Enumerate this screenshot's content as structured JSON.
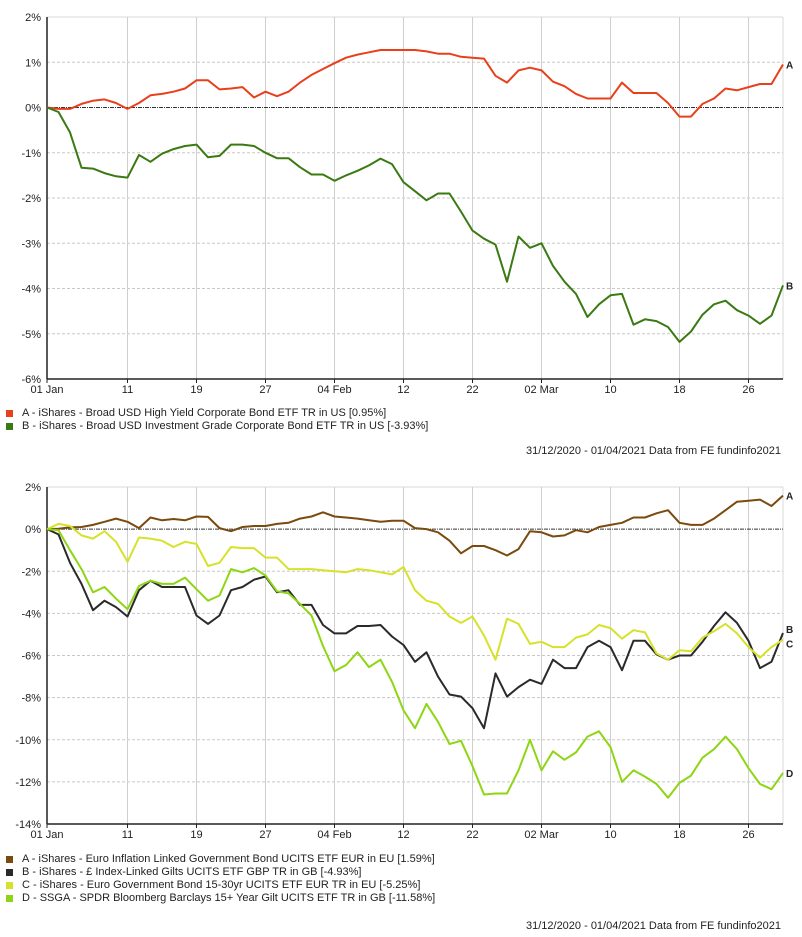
{
  "chart_data": [
    {
      "type": "line",
      "title": "",
      "xlabel": "",
      "ylabel": "",
      "ylim": [
        -6,
        2
      ],
      "yticks": [
        "2%",
        "1%",
        "0%",
        "-1%",
        "-2%",
        "-3%",
        "-4%",
        "-5%",
        "-6%"
      ],
      "ytick_values": [
        2,
        1,
        0,
        -1,
        -2,
        -3,
        -4,
        -5,
        -6
      ],
      "xticks": [
        "01 Jan",
        "11",
        "19",
        "27",
        "04 Feb",
        "12",
        "22",
        "02 Mar",
        "10",
        "18",
        "26"
      ],
      "xtick_positions": [
        0,
        7,
        13,
        19,
        25,
        31,
        37,
        43,
        49,
        55,
        61
      ],
      "x_count": 65,
      "grid": true,
      "zero_line": true,
      "series": [
        {
          "name": "A - iShares - Broad USD High Yield Corporate Bond ETF TR in US [0.95%]",
          "end_label": "A",
          "color": "#e8401c",
          "values": [
            0,
            -0.03,
            -0.03,
            0.08,
            0.15,
            0.18,
            0.1,
            -0.03,
            0.1,
            0.27,
            0.3,
            0.35,
            0.42,
            0.6,
            0.6,
            0.4,
            0.42,
            0.45,
            0.22,
            0.35,
            0.25,
            0.35,
            0.55,
            0.72,
            0.85,
            0.98,
            1.1,
            1.17,
            1.22,
            1.27,
            1.27,
            1.27,
            1.27,
            1.24,
            1.19,
            1.19,
            1.12,
            1.1,
            1.08,
            0.7,
            0.55,
            0.82,
            0.88,
            0.82,
            0.57,
            0.47,
            0.3,
            0.2,
            0.2,
            0.2,
            0.55,
            0.32,
            0.32,
            0.32,
            0.1,
            -0.2,
            -0.2,
            0.08,
            0.2,
            0.42,
            0.38,
            0.45,
            0.52,
            0.52,
            0.95
          ]
        },
        {
          "name": "B - iShares - Broad USD Investment Grade Corporate Bond ETF TR in US [-3.93%]",
          "end_label": "B",
          "color": "#3a7a12",
          "values": [
            0,
            -0.1,
            -0.55,
            -1.33,
            -1.35,
            -1.45,
            -1.52,
            -1.55,
            -1.05,
            -1.2,
            -1.02,
            -0.92,
            -0.85,
            -0.82,
            -1.1,
            -1.07,
            -0.82,
            -0.82,
            -0.85,
            -1.0,
            -1.12,
            -1.12,
            -1.32,
            -1.48,
            -1.48,
            -1.62,
            -1.5,
            -1.4,
            -1.28,
            -1.13,
            -1.25,
            -1.65,
            -1.85,
            -2.05,
            -1.9,
            -1.9,
            -2.3,
            -2.72,
            -2.9,
            -3.03,
            -3.85,
            -2.85,
            -3.1,
            -3.0,
            -3.5,
            -3.85,
            -4.12,
            -4.63,
            -4.35,
            -4.15,
            -4.12,
            -4.8,
            -4.68,
            -4.72,
            -4.85,
            -5.18,
            -4.95,
            -4.58,
            -4.35,
            -4.27,
            -4.48,
            -4.6,
            -4.78,
            -4.6,
            -3.93
          ]
        }
      ]
    },
    {
      "type": "line",
      "title": "",
      "xlabel": "",
      "ylabel": "",
      "ylim": [
        -14,
        2
      ],
      "yticks": [
        "2%",
        "0%",
        "-2%",
        "-4%",
        "-6%",
        "-8%",
        "-10%",
        "-12%",
        "-14%"
      ],
      "ytick_values": [
        2,
        0,
        -2,
        -4,
        -6,
        -8,
        -10,
        -12,
        -14
      ],
      "xticks": [
        "01 Jan",
        "11",
        "19",
        "27",
        "04 Feb",
        "12",
        "22",
        "02 Mar",
        "10",
        "18",
        "26"
      ],
      "xtick_positions": [
        0,
        7,
        13,
        19,
        25,
        31,
        37,
        43,
        49,
        55,
        61
      ],
      "x_count": 65,
      "grid": true,
      "zero_line": true,
      "series": [
        {
          "name": "A - iShares - Euro Inflation Linked Government Bond UCITS ETF EUR in EU [1.59%]",
          "end_label": "A",
          "color": "#7a4a0e",
          "values": [
            0,
            0.02,
            0.08,
            0.1,
            0.2,
            0.35,
            0.5,
            0.35,
            0.05,
            0.55,
            0.42,
            0.48,
            0.42,
            0.6,
            0.58,
            0.05,
            -0.1,
            0.1,
            0.15,
            0.15,
            0.25,
            0.3,
            0.5,
            0.6,
            0.8,
            0.6,
            0.55,
            0.5,
            0.42,
            0.35,
            0.4,
            0.4,
            0.05,
            0.0,
            -0.15,
            -0.55,
            -1.15,
            -0.8,
            -0.8,
            -1.0,
            -1.25,
            -0.95,
            -0.1,
            -0.15,
            -0.35,
            -0.3,
            -0.05,
            -0.15,
            0.1,
            0.2,
            0.3,
            0.55,
            0.55,
            0.75,
            0.9,
            0.3,
            0.2,
            0.2,
            0.5,
            0.9,
            1.3,
            1.35,
            1.4,
            1.1,
            1.59
          ]
        },
        {
          "name": "B - iShares - £ Index-Linked Gilts UCITS ETF GBP TR in GB [-4.93%]",
          "end_label": "B",
          "color": "#2a2a2a",
          "values": [
            0,
            -0.25,
            -1.6,
            -2.6,
            -3.85,
            -3.4,
            -3.7,
            -4.15,
            -2.9,
            -2.45,
            -2.75,
            -2.75,
            -2.75,
            -4.1,
            -4.5,
            -4.1,
            -2.9,
            -2.75,
            -2.4,
            -2.25,
            -3.0,
            -2.9,
            -3.6,
            -3.6,
            -4.55,
            -4.95,
            -4.95,
            -4.6,
            -4.6,
            -4.55,
            -5.1,
            -5.5,
            -6.3,
            -5.85,
            -7.0,
            -7.85,
            -7.95,
            -8.5,
            -9.45,
            -6.85,
            -7.95,
            -7.5,
            -7.15,
            -7.35,
            -6.2,
            -6.6,
            -6.6,
            -5.6,
            -5.3,
            -5.6,
            -6.7,
            -5.3,
            -5.3,
            -5.95,
            -6.2,
            -6.0,
            -6.0,
            -5.35,
            -4.6,
            -3.95,
            -4.45,
            -5.3,
            -6.6,
            -6.3,
            -4.93
          ]
        },
        {
          "name": "C - iShares - Euro Government Bond 15-30yr UCITS ETF EUR TR in EU [-5.25%]",
          "end_label": "C",
          "color": "#d6e22a",
          "values": [
            0,
            0.25,
            0.15,
            -0.3,
            -0.45,
            -0.1,
            -0.6,
            -1.55,
            -0.4,
            -0.45,
            -0.55,
            -0.85,
            -0.6,
            -0.7,
            -1.75,
            -1.6,
            -0.85,
            -0.9,
            -0.9,
            -1.35,
            -1.35,
            -1.9,
            -1.9,
            -1.9,
            -1.95,
            -2.0,
            -2.05,
            -1.9,
            -1.95,
            -2.05,
            -2.15,
            -1.8,
            -2.9,
            -3.4,
            -3.55,
            -4.15,
            -4.45,
            -4.15,
            -5.05,
            -6.2,
            -4.25,
            -4.5,
            -5.45,
            -5.35,
            -5.6,
            -5.6,
            -5.15,
            -5.0,
            -4.55,
            -4.7,
            -5.2,
            -4.8,
            -4.9,
            -5.9,
            -6.2,
            -5.75,
            -5.8,
            -5.15,
            -4.85,
            -4.5,
            -4.95,
            -5.6,
            -6.1,
            -5.6,
            -5.25
          ]
        },
        {
          "name": "D - SSGA - SPDR Bloomberg Barclays 15+ Year Gilt UCITS ETF TR in GB [-11.58%]",
          "end_label": "D",
          "color": "#8ed614",
          "values": [
            0,
            -0.05,
            -1.0,
            -1.9,
            -3.0,
            -2.75,
            -3.3,
            -3.8,
            -2.7,
            -2.45,
            -2.6,
            -2.6,
            -2.3,
            -2.85,
            -3.4,
            -3.15,
            -1.9,
            -2.05,
            -1.85,
            -2.2,
            -2.95,
            -3.05,
            -3.55,
            -4.1,
            -5.55,
            -6.75,
            -6.45,
            -5.85,
            -6.55,
            -6.2,
            -7.25,
            -8.6,
            -9.45,
            -8.3,
            -9.15,
            -10.2,
            -10.05,
            -11.25,
            -12.6,
            -12.55,
            -12.55,
            -11.45,
            -10.0,
            -11.45,
            -10.55,
            -10.95,
            -10.6,
            -9.85,
            -9.6,
            -10.35,
            -12.0,
            -11.45,
            -11.75,
            -12.1,
            -12.75,
            -12.05,
            -11.7,
            -10.85,
            -10.45,
            -9.85,
            -10.45,
            -11.35,
            -12.1,
            -12.35,
            -11.58
          ]
        }
      ]
    }
  ],
  "legend_top": [
    {
      "label": "A - iShares - Broad USD High Yield Corporate Bond ETF TR in US [0.95%]",
      "color": "#e8401c"
    },
    {
      "label": "B - iShares - Broad USD Investment Grade Corporate Bond ETF TR in US [-3.93%]",
      "color": "#3a7a12"
    }
  ],
  "legend_bottom": [
    {
      "label": "A - iShares - Euro Inflation Linked Government Bond UCITS ETF EUR in EU [1.59%]",
      "color": "#7a4a0e"
    },
    {
      "label": "B - iShares - £ Index-Linked Gilts UCITS ETF GBP TR in GB [-4.93%]",
      "color": "#2a2a2a"
    },
    {
      "label": "C - iShares - Euro Government Bond 15-30yr UCITS ETF EUR TR in EU [-5.25%]",
      "color": "#d6e22a"
    },
    {
      "label": "D - SSGA - SPDR Bloomberg Barclays 15+ Year Gilt UCITS ETF TR in GB [-11.58%]",
      "color": "#8ed614"
    }
  ],
  "source_top": "31/12/2020 - 01/04/2021 Data from FE fundinfo2021",
  "source_bottom": "31/12/2020 - 01/04/2021 Data from FE fundinfo2021"
}
